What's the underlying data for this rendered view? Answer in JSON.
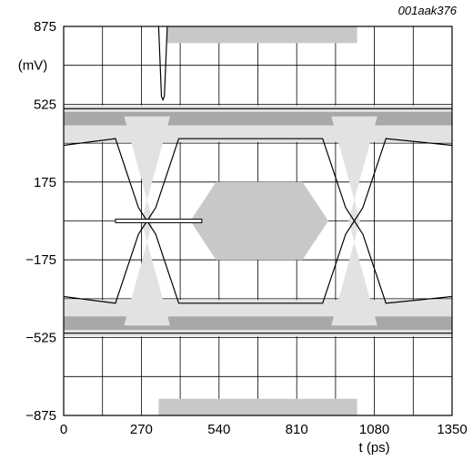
{
  "figure_ref": "001aak376",
  "chart_data": {
    "type": "line",
    "title": "",
    "xlabel": "t (ps)",
    "ylabel": "(mV)",
    "xlim": [
      0,
      1350
    ],
    "ylim": [
      -875,
      875
    ],
    "x_ticks": [
      0,
      270,
      540,
      810,
      1080,
      1350
    ],
    "x_tick_labels": [
      "0",
      "270",
      "540",
      "810",
      "1080",
      "1350"
    ],
    "y_ticks": [
      875,
      525,
      175,
      -175,
      -525,
      -875
    ],
    "y_tick_labels": [
      "875",
      "525",
      "175",
      "−175",
      "−525",
      "−875"
    ],
    "grid": true,
    "eye_upper_level": 470,
    "eye_lower_level": -470,
    "eye_crossing_times": [
      290,
      1010
    ],
    "eye_crossing_level": 0,
    "mask_hexagon": [
      [
        440,
        0
      ],
      [
        530,
        175
      ],
      [
        830,
        175
      ],
      [
        920,
        0
      ],
      [
        830,
        -175
      ],
      [
        530,
        -175
      ]
    ],
    "mask_upper_band": [
      [
        360,
        800
      ],
      [
        1020,
        875
      ]
    ],
    "mask_lower_band": [
      [
        330,
        -875
      ],
      [
        1020,
        -800
      ]
    ],
    "colors": {
      "mask": "#c8c8c8",
      "trace_dense": "#a8a8a8",
      "trace_light": "#e2e2e2",
      "grid": "#000000"
    }
  }
}
